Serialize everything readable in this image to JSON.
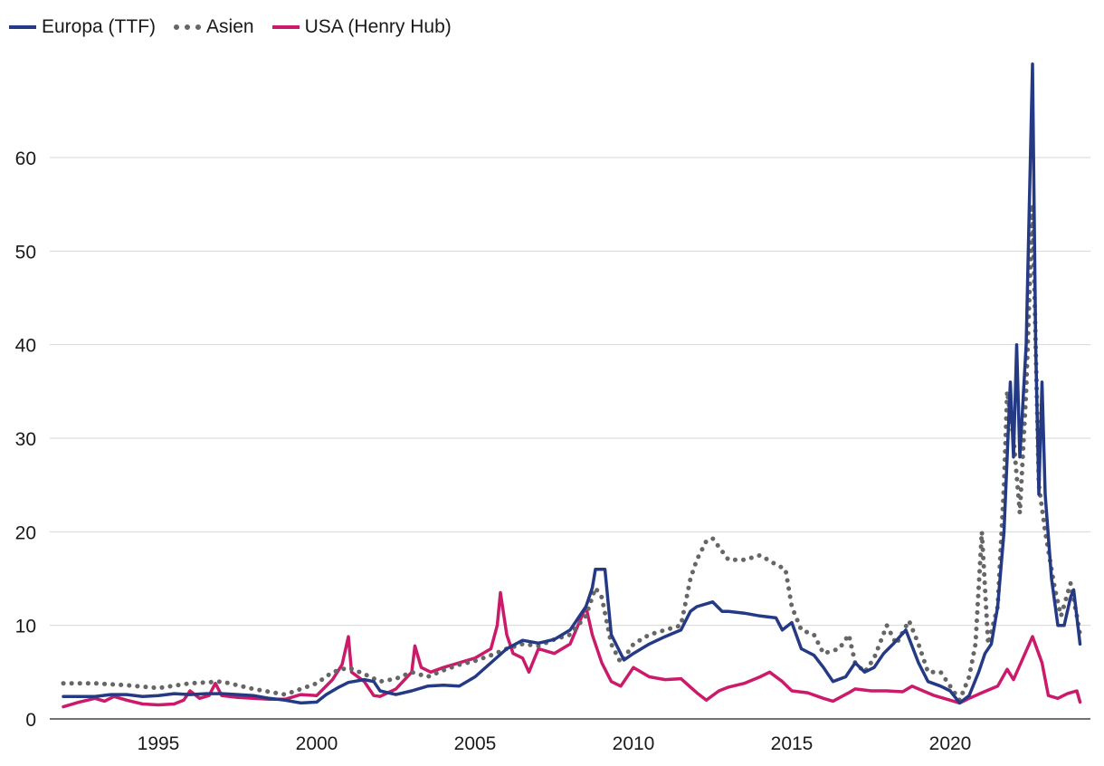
{
  "chart_data": {
    "type": "line",
    "title": "",
    "xlabel": "",
    "ylabel": "",
    "xlim": [
      1992.0,
      2024.3
    ],
    "ylim": [
      0,
      70
    ],
    "x_ticks": [
      1995,
      2000,
      2005,
      2010,
      2015,
      2020
    ],
    "y_ticks": [
      0,
      10,
      20,
      30,
      40,
      50,
      60
    ],
    "grid": "horizontal",
    "legend_position": "top-left",
    "series": [
      {
        "name": "Europa (TTF)",
        "color": "#243a85",
        "style": "solid",
        "points": [
          [
            1992.0,
            2.4
          ],
          [
            1993.0,
            2.4
          ],
          [
            1993.5,
            2.6
          ],
          [
            1994.0,
            2.6
          ],
          [
            1994.5,
            2.4
          ],
          [
            1995.0,
            2.5
          ],
          [
            1995.5,
            2.7
          ],
          [
            1996.0,
            2.6
          ],
          [
            1996.5,
            2.7
          ],
          [
            1997.0,
            2.7
          ],
          [
            1997.5,
            2.6
          ],
          [
            1998.0,
            2.5
          ],
          [
            1998.5,
            2.2
          ],
          [
            1999.0,
            2.0
          ],
          [
            1999.5,
            1.7
          ],
          [
            2000.0,
            1.8
          ],
          [
            2000.3,
            2.6
          ],
          [
            2000.7,
            3.4
          ],
          [
            2001.0,
            3.9
          ],
          [
            2001.5,
            4.2
          ],
          [
            2001.8,
            4.0
          ],
          [
            2002.0,
            3.0
          ],
          [
            2002.5,
            2.6
          ],
          [
            2003.0,
            3.0
          ],
          [
            2003.5,
            3.5
          ],
          [
            2004.0,
            3.6
          ],
          [
            2004.5,
            3.5
          ],
          [
            2005.0,
            4.5
          ],
          [
            2005.5,
            6.0
          ],
          [
            2006.0,
            7.5
          ],
          [
            2006.5,
            8.4
          ],
          [
            2007.0,
            8.1
          ],
          [
            2007.5,
            8.5
          ],
          [
            2008.0,
            9.5
          ],
          [
            2008.5,
            12.0
          ],
          [
            2008.7,
            14.0
          ],
          [
            2008.8,
            16.0
          ],
          [
            2009.1,
            16.0
          ],
          [
            2009.3,
            9.0
          ],
          [
            2009.7,
            6.3
          ],
          [
            2010.0,
            7.0
          ],
          [
            2010.5,
            8.0
          ],
          [
            2011.0,
            8.8
          ],
          [
            2011.5,
            9.5
          ],
          [
            2011.8,
            11.5
          ],
          [
            2012.0,
            12.0
          ],
          [
            2012.5,
            12.5
          ],
          [
            2012.8,
            11.5
          ],
          [
            2013.0,
            11.5
          ],
          [
            2013.5,
            11.3
          ],
          [
            2014.0,
            11.0
          ],
          [
            2014.5,
            10.8
          ],
          [
            2014.7,
            9.5
          ],
          [
            2015.0,
            10.3
          ],
          [
            2015.3,
            7.5
          ],
          [
            2015.7,
            6.8
          ],
          [
            2016.0,
            5.5
          ],
          [
            2016.3,
            4.0
          ],
          [
            2016.7,
            4.5
          ],
          [
            2017.0,
            6.0
          ],
          [
            2017.3,
            5.0
          ],
          [
            2017.6,
            5.5
          ],
          [
            2017.9,
            7.0
          ],
          [
            2018.2,
            8.0
          ],
          [
            2018.6,
            9.5
          ],
          [
            2019.0,
            6.0
          ],
          [
            2019.3,
            4.0
          ],
          [
            2019.7,
            3.5
          ],
          [
            2020.0,
            3.0
          ],
          [
            2020.3,
            1.7
          ],
          [
            2020.6,
            2.5
          ],
          [
            2020.9,
            5.0
          ],
          [
            2021.1,
            7.0
          ],
          [
            2021.3,
            8.0
          ],
          [
            2021.5,
            12.0
          ],
          [
            2021.7,
            20.0
          ],
          [
            2021.9,
            36.0
          ],
          [
            2022.0,
            28.0
          ],
          [
            2022.1,
            40.0
          ],
          [
            2022.2,
            28.0
          ],
          [
            2022.4,
            40.0
          ],
          [
            2022.6,
            70.0
          ],
          [
            2022.7,
            40.0
          ],
          [
            2022.8,
            24.0
          ],
          [
            2022.9,
            36.0
          ],
          [
            2023.0,
            24.0
          ],
          [
            2023.2,
            15.0
          ],
          [
            2023.4,
            10.0
          ],
          [
            2023.6,
            10.0
          ],
          [
            2023.8,
            13.0
          ],
          [
            2023.9,
            13.8
          ],
          [
            2024.1,
            8.0
          ]
        ]
      },
      {
        "name": "Asien",
        "color": "#666666",
        "style": "dotted",
        "points": [
          [
            1992.0,
            3.8
          ],
          [
            1993.0,
            3.8
          ],
          [
            1994.0,
            3.6
          ],
          [
            1995.0,
            3.3
          ],
          [
            1996.0,
            3.8
          ],
          [
            1997.0,
            4.0
          ],
          [
            1998.0,
            3.2
          ],
          [
            1999.0,
            2.6
          ],
          [
            2000.0,
            3.8
          ],
          [
            2000.5,
            5.0
          ],
          [
            2001.0,
            5.5
          ],
          [
            2001.5,
            4.8
          ],
          [
            2002.0,
            4.0
          ],
          [
            2002.5,
            4.3
          ],
          [
            2003.0,
            5.0
          ],
          [
            2003.5,
            4.5
          ],
          [
            2004.0,
            5.2
          ],
          [
            2004.5,
            5.8
          ],
          [
            2005.0,
            6.2
          ],
          [
            2005.5,
            6.8
          ],
          [
            2006.0,
            7.5
          ],
          [
            2006.5,
            8.0
          ],
          [
            2007.0,
            7.8
          ],
          [
            2007.5,
            8.5
          ],
          [
            2008.0,
            9.0
          ],
          [
            2008.5,
            11.0
          ],
          [
            2008.8,
            14.0
          ],
          [
            2009.0,
            13.0
          ],
          [
            2009.3,
            8.0
          ],
          [
            2009.6,
            6.0
          ],
          [
            2010.0,
            8.0
          ],
          [
            2010.5,
            9.0
          ],
          [
            2011.0,
            9.5
          ],
          [
            2011.5,
            10.0
          ],
          [
            2011.8,
            15.0
          ],
          [
            2012.0,
            17.0
          ],
          [
            2012.3,
            19.0
          ],
          [
            2012.5,
            19.3
          ],
          [
            2013.0,
            17.0
          ],
          [
            2013.5,
            17.0
          ],
          [
            2014.0,
            17.5
          ],
          [
            2014.5,
            16.5
          ],
          [
            2014.8,
            16.0
          ],
          [
            2015.0,
            12.0
          ],
          [
            2015.3,
            9.5
          ],
          [
            2015.7,
            9.0
          ],
          [
            2016.0,
            7.0
          ],
          [
            2016.5,
            7.5
          ],
          [
            2016.8,
            9.0
          ],
          [
            2017.0,
            6.0
          ],
          [
            2017.3,
            5.0
          ],
          [
            2017.6,
            6.5
          ],
          [
            2018.0,
            10.0
          ],
          [
            2018.3,
            8.0
          ],
          [
            2018.7,
            10.5
          ],
          [
            2019.0,
            8.0
          ],
          [
            2019.3,
            5.0
          ],
          [
            2019.7,
            5.0
          ],
          [
            2020.0,
            3.5
          ],
          [
            2020.3,
            2.0
          ],
          [
            2020.6,
            4.5
          ],
          [
            2020.8,
            8.0
          ],
          [
            2021.0,
            20.0
          ],
          [
            2021.2,
            8.0
          ],
          [
            2021.5,
            12.0
          ],
          [
            2021.7,
            25.0
          ],
          [
            2021.8,
            35.0
          ],
          [
            2022.0,
            30.0
          ],
          [
            2022.2,
            22.0
          ],
          [
            2022.4,
            35.0
          ],
          [
            2022.6,
            55.0
          ],
          [
            2022.7,
            40.0
          ],
          [
            2022.8,
            25.0
          ],
          [
            2023.0,
            20.0
          ],
          [
            2023.3,
            14.0
          ],
          [
            2023.5,
            11.0
          ],
          [
            2023.8,
            14.5
          ],
          [
            2024.0,
            11.0
          ],
          [
            2024.1,
            9.0
          ]
        ]
      },
      {
        "name": "USA (Henry Hub)",
        "color": "#cc1a6b",
        "style": "solid",
        "points": [
          [
            1992.0,
            1.3
          ],
          [
            1992.5,
            1.8
          ],
          [
            1993.0,
            2.2
          ],
          [
            1993.3,
            1.9
          ],
          [
            1993.6,
            2.4
          ],
          [
            1994.0,
            2.0
          ],
          [
            1994.5,
            1.6
          ],
          [
            1995.0,
            1.5
          ],
          [
            1995.5,
            1.6
          ],
          [
            1995.8,
            2.0
          ],
          [
            1996.0,
            3.0
          ],
          [
            1996.3,
            2.2
          ],
          [
            1996.6,
            2.5
          ],
          [
            1996.8,
            3.8
          ],
          [
            1997.0,
            2.5
          ],
          [
            1997.5,
            2.3
          ],
          [
            1998.0,
            2.2
          ],
          [
            1998.5,
            2.1
          ],
          [
            1999.0,
            2.1
          ],
          [
            1999.5,
            2.6
          ],
          [
            2000.0,
            2.5
          ],
          [
            2000.5,
            4.2
          ],
          [
            2000.8,
            5.8
          ],
          [
            2001.0,
            8.8
          ],
          [
            2001.1,
            5.0
          ],
          [
            2001.5,
            4.0
          ],
          [
            2001.8,
            2.5
          ],
          [
            2002.0,
            2.4
          ],
          [
            2002.5,
            3.2
          ],
          [
            2003.0,
            5.0
          ],
          [
            2003.1,
            7.8
          ],
          [
            2003.3,
            5.5
          ],
          [
            2003.6,
            5.0
          ],
          [
            2004.0,
            5.5
          ],
          [
            2004.5,
            6.0
          ],
          [
            2005.0,
            6.5
          ],
          [
            2005.5,
            7.5
          ],
          [
            2005.7,
            10.0
          ],
          [
            2005.8,
            13.5
          ],
          [
            2006.0,
            9.0
          ],
          [
            2006.2,
            7.0
          ],
          [
            2006.5,
            6.5
          ],
          [
            2006.7,
            5.0
          ],
          [
            2007.0,
            7.5
          ],
          [
            2007.5,
            7.0
          ],
          [
            2008.0,
            8.0
          ],
          [
            2008.5,
            12.0
          ],
          [
            2008.7,
            9.0
          ],
          [
            2009.0,
            6.0
          ],
          [
            2009.3,
            4.0
          ],
          [
            2009.6,
            3.5
          ],
          [
            2010.0,
            5.5
          ],
          [
            2010.5,
            4.5
          ],
          [
            2011.0,
            4.2
          ],
          [
            2011.5,
            4.3
          ],
          [
            2012.0,
            2.8
          ],
          [
            2012.3,
            2.0
          ],
          [
            2012.7,
            3.0
          ],
          [
            2013.0,
            3.4
          ],
          [
            2013.5,
            3.8
          ],
          [
            2014.0,
            4.5
          ],
          [
            2014.3,
            5.0
          ],
          [
            2014.7,
            4.0
          ],
          [
            2015.0,
            3.0
          ],
          [
            2015.5,
            2.8
          ],
          [
            2016.0,
            2.2
          ],
          [
            2016.3,
            1.9
          ],
          [
            2016.8,
            2.8
          ],
          [
            2017.0,
            3.2
          ],
          [
            2017.5,
            3.0
          ],
          [
            2018.0,
            3.0
          ],
          [
            2018.5,
            2.9
          ],
          [
            2018.8,
            3.5
          ],
          [
            2019.0,
            3.2
          ],
          [
            2019.5,
            2.5
          ],
          [
            2020.0,
            2.0
          ],
          [
            2020.3,
            1.7
          ],
          [
            2020.6,
            2.2
          ],
          [
            2021.0,
            2.8
          ],
          [
            2021.5,
            3.5
          ],
          [
            2021.8,
            5.3
          ],
          [
            2022.0,
            4.2
          ],
          [
            2022.3,
            6.5
          ],
          [
            2022.6,
            8.8
          ],
          [
            2022.9,
            6.0
          ],
          [
            2023.1,
            2.5
          ],
          [
            2023.4,
            2.2
          ],
          [
            2023.7,
            2.7
          ],
          [
            2024.0,
            3.0
          ],
          [
            2024.1,
            1.8
          ]
        ]
      }
    ]
  }
}
